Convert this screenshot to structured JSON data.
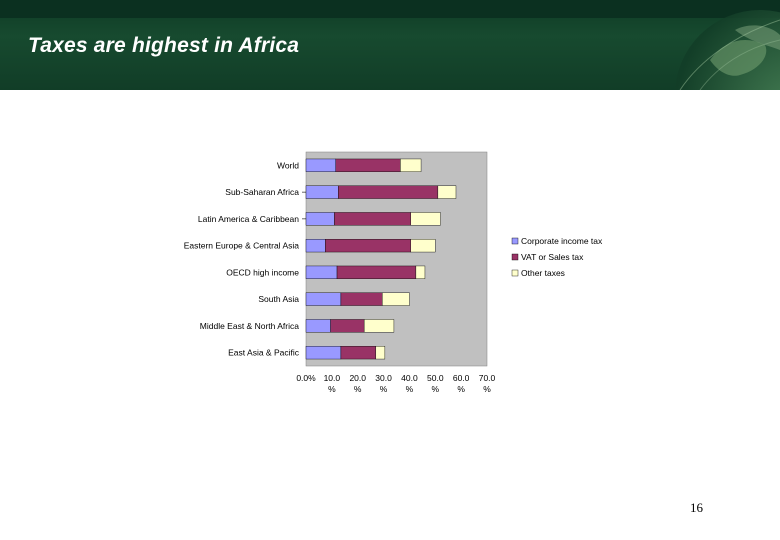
{
  "slide": {
    "title": "Taxes are highest in Africa",
    "page_number": "16"
  },
  "chart_data": {
    "type": "bar",
    "orientation": "horizontal",
    "stacked": true,
    "categories": [
      "World",
      "Sub-Saharan Africa",
      "Latin America & Caribbean",
      "Eastern Europe & Central Asia",
      "OECD high income",
      "South Asia",
      "Middle East & North Africa",
      "East Asia & Pacific"
    ],
    "series": [
      {
        "name": "Corporate income tax",
        "color": "#9999ff",
        "values": [
          11.5,
          12.5,
          11.0,
          7.5,
          12.0,
          13.5,
          9.5,
          13.5
        ]
      },
      {
        "name": "VAT or Sales tax",
        "color": "#993366",
        "values": [
          25.0,
          38.5,
          29.5,
          33.0,
          30.5,
          16.0,
          13.0,
          13.5
        ]
      },
      {
        "name": "Other taxes",
        "color": "#ffffcc",
        "values": [
          8.0,
          7.0,
          11.5,
          9.5,
          3.5,
          10.5,
          11.5,
          3.5
        ]
      }
    ],
    "x_ticks": [
      "0.0%",
      "10.0 %",
      "20.0 %",
      "30.0 %",
      "40.0 %",
      "50.0 %",
      "60.0 %",
      "70.0 %"
    ],
    "xlim": [
      0,
      70
    ],
    "grid": false,
    "legend_position": "right",
    "plot_background": "#c0c0c0"
  }
}
